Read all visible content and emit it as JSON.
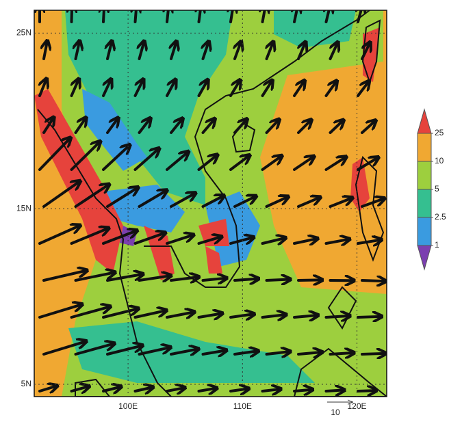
{
  "map": {
    "lon_range": [
      91.8,
      122.6
    ],
    "lat_range": [
      4.3,
      26.3
    ],
    "lat_ticks": [
      {
        "value": 25,
        "label": "25N"
      },
      {
        "value": 15,
        "label": "15N"
      },
      {
        "value": 5,
        "label": "5N"
      }
    ],
    "lon_ticks": [
      {
        "value": 100,
        "label": "100E"
      },
      {
        "value": 110,
        "label": "110E"
      },
      {
        "value": 120,
        "label": "120E"
      }
    ],
    "colorbar": {
      "levels": [
        1,
        2.5,
        5,
        10,
        25
      ],
      "colors": [
        "#7b3fb0",
        "#3a9be0",
        "#35bf90",
        "#9dcf3e",
        "#f0a832",
        "#e6433c"
      ]
    },
    "reference_vector": {
      "value": 10
    }
  }
}
